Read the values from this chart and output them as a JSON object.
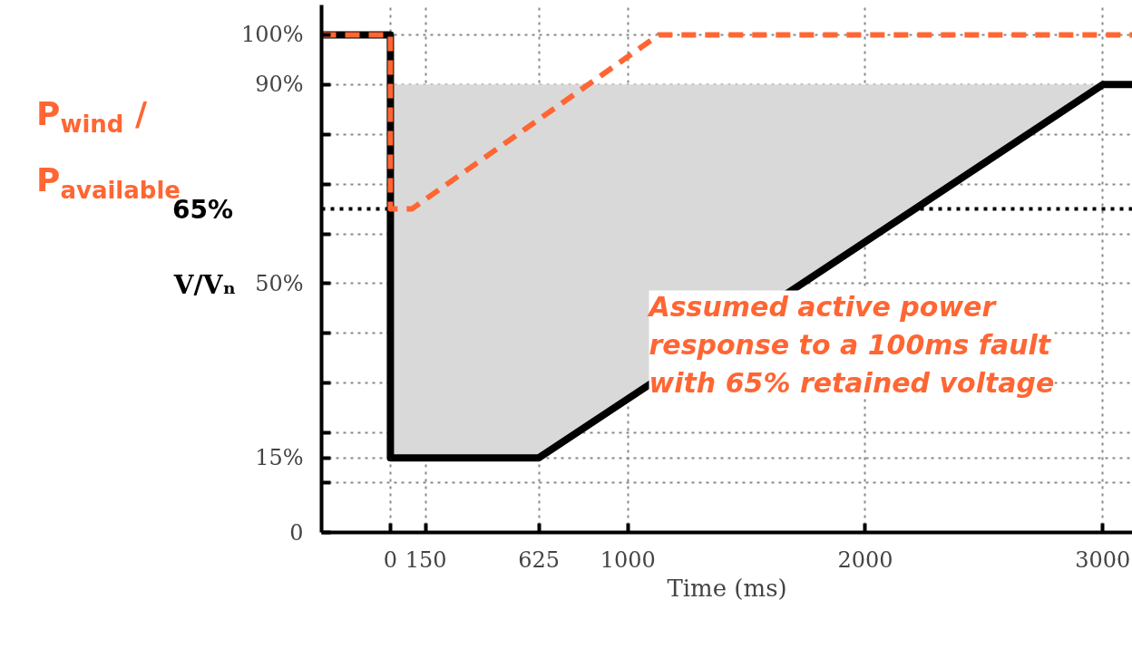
{
  "chart_data": {
    "type": "line",
    "xlabel": "Time (ms)",
    "ylabel": "V/Vₙ",
    "xlim": [
      -290,
      3125
    ],
    "ylim": [
      0,
      106
    ],
    "xticks": [
      0,
      150,
      625,
      1000,
      2000,
      3000
    ],
    "yticks": [
      {
        "value": 0,
        "label": "0"
      },
      {
        "value": 10,
        "label": null
      },
      {
        "value": 15,
        "label": "15%"
      },
      {
        "value": 20,
        "label": null
      },
      {
        "value": 30,
        "label": null
      },
      {
        "value": 40,
        "label": null
      },
      {
        "value": 50,
        "label": "50%"
      },
      {
        "value": 60,
        "label": null
      },
      {
        "value": 70,
        "label": null
      },
      {
        "value": 80,
        "label": null
      },
      {
        "value": 90,
        "label": "90%"
      },
      {
        "value": 100,
        "label": "100%"
      }
    ],
    "grid": true,
    "series": [
      {
        "color": "#000000",
        "x": [
          -290,
          0,
          0,
          625,
          3000,
          3125
        ],
        "values": [
          100,
          100,
          15,
          15,
          90,
          90
        ],
        "lower": [
          null,
          null,
          15,
          15,
          90,
          null
        ],
        "upper": [
          null,
          null,
          90,
          90,
          90,
          null
        ],
        "line_style": "solid"
      },
      {
        "name": "P$_{wind}$ / P$_{available}$",
        "color": "#ff6633",
        "x": [
          -290,
          0,
          0,
          90,
          1130,
          3125
        ],
        "values": [
          100,
          100,
          65,
          65,
          100,
          100
        ],
        "line_style": "dashed"
      }
    ],
    "ref_lines": [
      {
        "axis": "y",
        "value": 65,
        "label": "65%",
        "color": "#000000",
        "line_style": "dotted"
      }
    ],
    "annotations": [
      "Assumed active power response to a 100ms fault with 65% retained voltage"
    ]
  }
}
